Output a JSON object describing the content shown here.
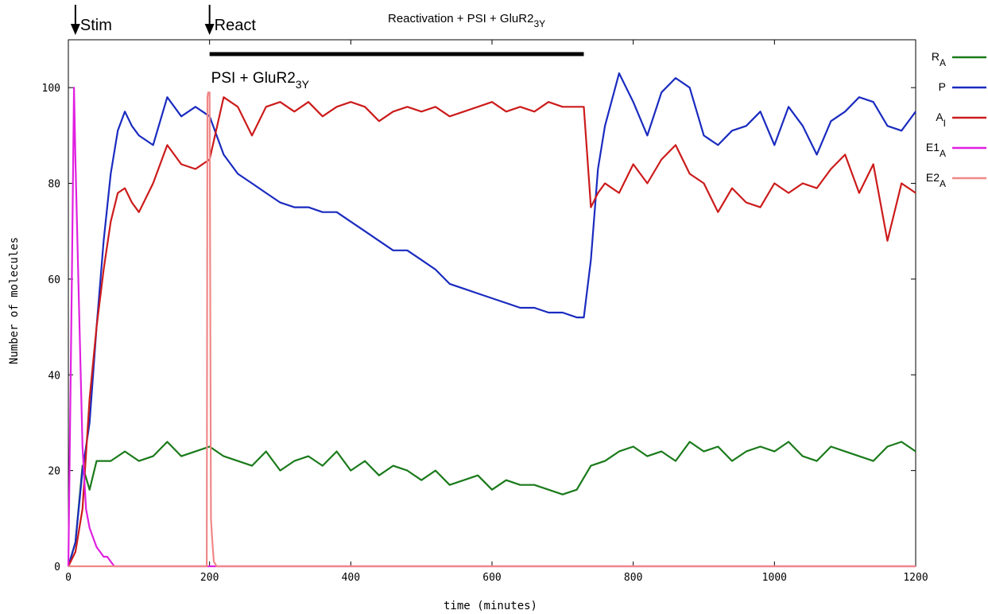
{
  "chart_data": {
    "type": "line",
    "title": "Reactivation + PSI + GluR2",
    "title_sub": "3Y",
    "xlabel": "time (minutes)",
    "ylabel": "Number of molecules",
    "xlim": [
      0,
      1200
    ],
    "ylim": [
      0,
      110
    ],
    "xticks": [
      0,
      200,
      400,
      600,
      800,
      1000,
      1200
    ],
    "yticks": [
      0,
      20,
      40,
      60,
      80,
      100
    ],
    "grid": false,
    "legend_position": "right, outside plot",
    "annotations": {
      "stim": {
        "label": "Stim",
        "x": 10
      },
      "react": {
        "label": "React",
        "x": 200
      },
      "treatment_bar": {
        "label": "PSI + GluR2",
        "label_sub": "3Y",
        "x_start": 200,
        "x_end": 730,
        "y": 107
      }
    },
    "series": [
      {
        "name": "R",
        "name_sub": "A",
        "color": "#1a7a1a",
        "x": [
          0,
          10,
          20,
          30,
          40,
          60,
          80,
          100,
          120,
          140,
          160,
          180,
          200,
          220,
          240,
          260,
          280,
          300,
          320,
          340,
          360,
          380,
          400,
          420,
          440,
          460,
          480,
          500,
          520,
          540,
          560,
          580,
          600,
          620,
          640,
          660,
          680,
          700,
          720,
          740,
          760,
          780,
          800,
          820,
          840,
          860,
          880,
          900,
          920,
          940,
          960,
          980,
          1000,
          1020,
          1040,
          1060,
          1080,
          1100,
          1120,
          1140,
          1160,
          1180,
          1200
        ],
        "values": [
          0,
          5,
          21,
          16,
          22,
          22,
          24,
          22,
          23,
          26,
          23,
          24,
          25,
          23,
          22,
          21,
          24,
          20,
          22,
          23,
          21,
          24,
          20,
          22,
          19,
          21,
          20,
          18,
          20,
          17,
          18,
          19,
          16,
          18,
          17,
          17,
          16,
          15,
          16,
          21,
          22,
          24,
          25,
          23,
          24,
          22,
          26,
          24,
          25,
          22,
          24,
          25,
          24,
          26,
          23,
          22,
          25,
          24,
          23,
          22,
          25,
          26,
          24
        ]
      },
      {
        "name": "P",
        "name_sub": "",
        "color": "#1a2bbf",
        "x": [
          0,
          10,
          20,
          30,
          40,
          50,
          60,
          70,
          80,
          90,
          100,
          120,
          140,
          160,
          180,
          200,
          220,
          240,
          260,
          280,
          300,
          320,
          340,
          360,
          380,
          400,
          420,
          440,
          460,
          480,
          500,
          520,
          540,
          560,
          580,
          600,
          620,
          640,
          660,
          680,
          700,
          720,
          730,
          740,
          750,
          760,
          780,
          800,
          820,
          840,
          860,
          880,
          900,
          920,
          940,
          960,
          980,
          1000,
          1020,
          1040,
          1060,
          1080,
          1100,
          1120,
          1140,
          1160,
          1180,
          1200
        ],
        "values": [
          0,
          5,
          20,
          30,
          50,
          68,
          82,
          91,
          95,
          92,
          90,
          88,
          98,
          94,
          96,
          94,
          86,
          82,
          80,
          78,
          76,
          75,
          75,
          74,
          74,
          72,
          70,
          68,
          66,
          66,
          64,
          62,
          59,
          58,
          57,
          56,
          55,
          54,
          54,
          53,
          53,
          52,
          52,
          64,
          83,
          92,
          103,
          97,
          90,
          99,
          102,
          100,
          90,
          88,
          91,
          92,
          95,
          88,
          96,
          92,
          86,
          93,
          95,
          98,
          97,
          92,
          91,
          95
        ]
      },
      {
        "name": "A",
        "name_sub": "I",
        "color": "#cc1b1b",
        "x": [
          0,
          10,
          20,
          30,
          40,
          50,
          60,
          70,
          80,
          90,
          100,
          120,
          140,
          160,
          180,
          200,
          220,
          240,
          260,
          280,
          300,
          320,
          340,
          360,
          380,
          400,
          420,
          440,
          460,
          480,
          500,
          520,
          540,
          560,
          580,
          600,
          620,
          640,
          660,
          680,
          700,
          720,
          730,
          740,
          750,
          760,
          780,
          800,
          820,
          840,
          860,
          880,
          900,
          920,
          940,
          960,
          980,
          1000,
          1020,
          1040,
          1060,
          1080,
          1100,
          1120,
          1140,
          1160,
          1180,
          1200
        ],
        "values": [
          0,
          3,
          12,
          35,
          50,
          62,
          72,
          78,
          79,
          76,
          74,
          80,
          88,
          84,
          83,
          85,
          98,
          96,
          90,
          96,
          97,
          95,
          97,
          94,
          96,
          97,
          96,
          93,
          95,
          96,
          95,
          96,
          94,
          95,
          96,
          97,
          95,
          96,
          95,
          97,
          96,
          96,
          96,
          75,
          78,
          80,
          78,
          84,
          80,
          85,
          88,
          82,
          80,
          74,
          79,
          76,
          75,
          80,
          78,
          80,
          79,
          83,
          86,
          78,
          84,
          68,
          80,
          78
        ]
      },
      {
        "name": "E1",
        "name_sub": "A",
        "color": "#e020e0",
        "x": [
          0,
          5,
          8,
          10,
          15,
          20,
          25,
          30,
          35,
          40,
          45,
          50,
          55,
          60,
          65,
          70,
          200,
          1200
        ],
        "values": [
          0,
          60,
          100,
          85,
          55,
          25,
          12,
          8,
          6,
          4,
          3,
          2,
          2,
          1,
          0,
          0,
          0,
          0
        ]
      },
      {
        "name": "E2",
        "name_sub": "A",
        "color": "#f08888",
        "x": [
          0,
          196,
          197,
          198,
          200,
          202,
          204,
          206,
          210,
          1200
        ],
        "values": [
          0,
          0,
          98,
          99,
          99,
          10,
          5,
          1,
          0,
          0
        ]
      }
    ]
  }
}
